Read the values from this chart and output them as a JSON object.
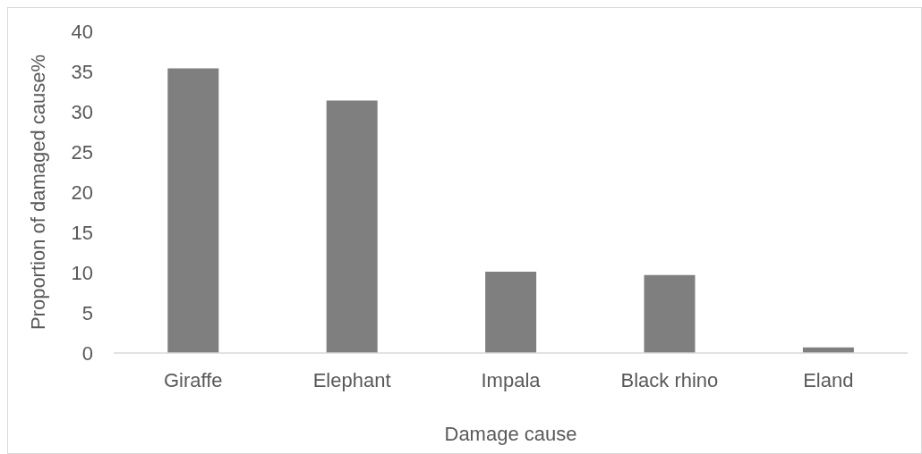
{
  "chart_data": {
    "type": "bar",
    "xlabel": "Damage cause",
    "ylabel": "Proportion of damaged cause%",
    "categories": [
      "Giraffe",
      "Elephant",
      "Impala",
      "Black rhino",
      "Eland"
    ],
    "values": [
      35.4,
      31.4,
      10.1,
      9.7,
      0.7
    ],
    "color": "#7f7f7f",
    "ylim": [
      0,
      40
    ],
    "yticks": [
      0,
      5,
      10,
      15,
      20,
      25,
      30,
      35,
      40
    ]
  }
}
